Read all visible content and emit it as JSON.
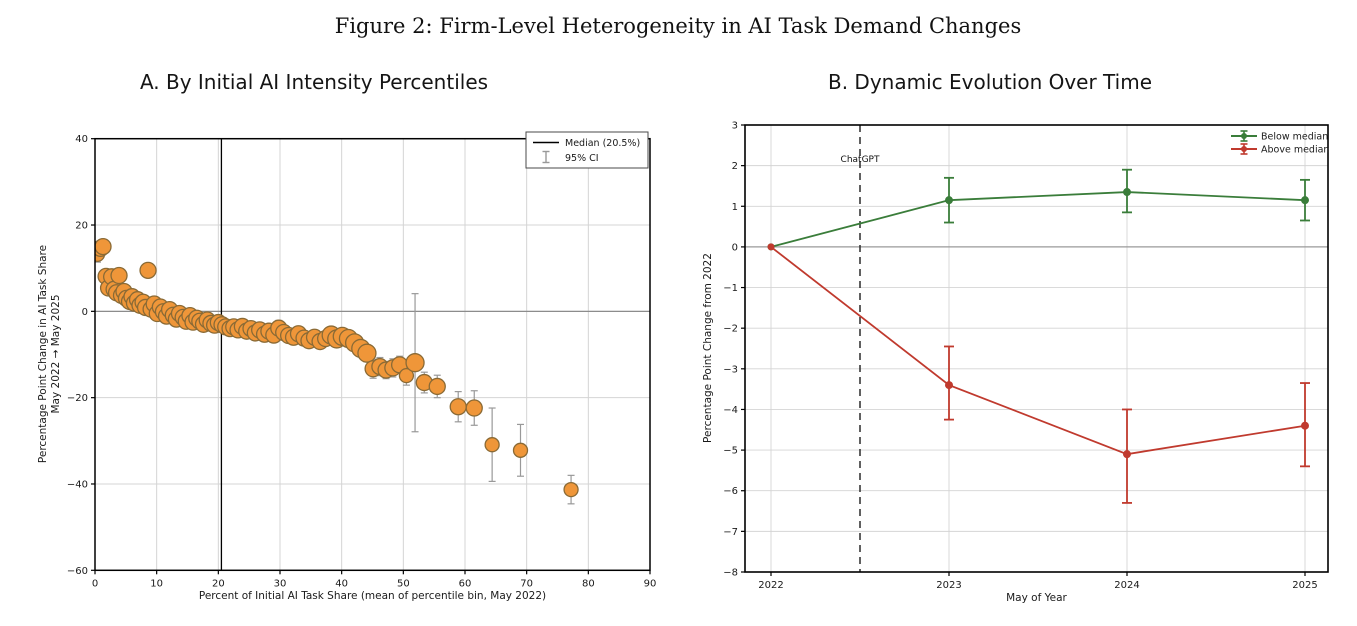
{
  "figure": {
    "title": "Figure 2: Firm-Level Heterogeneity in AI Task Demand Changes"
  },
  "chart_data": [
    {
      "type": "scatter",
      "panel": "A",
      "title": "A. By Initial AI Intensity Percentiles",
      "xlabel": "Percent of Initial AI Task Share (mean of percentile bin, May 2022)",
      "ylabel_line1": "Percentage Point Change in AI Task Share",
      "ylabel_line2": "May 2022 → May 2025",
      "xlim": [
        0,
        90
      ],
      "ylim": [
        -60,
        40
      ],
      "xticks": [
        0,
        10,
        20,
        30,
        40,
        50,
        60,
        70,
        80,
        90
      ],
      "yticks": [
        40,
        20,
        0,
        -20,
        -40,
        -60
      ],
      "grid": true,
      "median_line_x": 20.5,
      "zero_line_y": 0,
      "legend_position": "upper right",
      "legend": [
        {
          "label": "Median (20.5%)",
          "type": "line",
          "color": "#000000"
        },
        {
          "label": "95% CI",
          "type": "errorbar",
          "color": "#999999"
        }
      ],
      "marker_fill": "#ef9639",
      "marker_edge": "#8a6a35",
      "errorbar_color": "#999999",
      "points_format": "[x, y, ci_halfwidth, radius_px]",
      "points": [
        [
          0.4,
          13.2,
          1.8,
          7
        ],
        [
          0.9,
          14.6,
          1.5,
          8
        ],
        [
          1.3,
          15.0,
          1.2,
          8
        ],
        [
          1.8,
          8.1,
          1.5,
          8
        ],
        [
          2.2,
          5.4,
          1.4,
          8
        ],
        [
          2.7,
          8.0,
          1.3,
          8
        ],
        [
          3.1,
          5.1,
          1.2,
          8
        ],
        [
          3.5,
          4.3,
          1.5,
          8
        ],
        [
          3.9,
          8.3,
          1.4,
          8
        ],
        [
          4.3,
          3.7,
          1.3,
          8
        ],
        [
          4.7,
          4.6,
          1.5,
          8
        ],
        [
          5.1,
          3.0,
          1.3,
          8
        ],
        [
          5.6,
          2.3,
          1.4,
          8
        ],
        [
          6.0,
          3.4,
          1.6,
          8
        ],
        [
          6.4,
          1.9,
          1.3,
          8
        ],
        [
          6.9,
          2.7,
          1.5,
          8
        ],
        [
          7.3,
          1.4,
          1.4,
          8
        ],
        [
          7.8,
          2.1,
          1.3,
          8
        ],
        [
          8.2,
          0.9,
          1.5,
          8
        ],
        [
          8.6,
          9.5,
          1.6,
          8
        ],
        [
          9.1,
          0.5,
          1.4,
          8
        ],
        [
          9.6,
          1.7,
          1.5,
          8
        ],
        [
          10.1,
          -0.5,
          1.6,
          8
        ],
        [
          10.6,
          1.0,
          1.4,
          8
        ],
        [
          11.1,
          -0.1,
          1.3,
          8
        ],
        [
          11.6,
          -1.1,
          1.5,
          8
        ],
        [
          12.1,
          0.4,
          1.4,
          8
        ],
        [
          12.7,
          -0.9,
          1.3,
          8
        ],
        [
          13.2,
          -1.8,
          1.7,
          8
        ],
        [
          13.7,
          -0.5,
          1.4,
          8
        ],
        [
          14.3,
          -1.4,
          1.5,
          8
        ],
        [
          14.8,
          -2.3,
          1.6,
          8
        ],
        [
          15.4,
          -1.0,
          1.4,
          8
        ],
        [
          15.9,
          -2.5,
          1.5,
          8
        ],
        [
          16.5,
          -1.6,
          1.4,
          8
        ],
        [
          17.0,
          -2.3,
          1.5,
          8
        ],
        [
          17.6,
          -3.0,
          1.6,
          8
        ],
        [
          18.2,
          -2.0,
          1.4,
          8
        ],
        [
          18.8,
          -2.8,
          1.5,
          8
        ],
        [
          19.4,
          -3.2,
          1.4,
          8
        ],
        [
          20.0,
          -2.6,
          1.5,
          8
        ],
        [
          20.6,
          -3.1,
          1.4,
          8
        ],
        [
          21.2,
          -3.6,
          1.5,
          8
        ],
        [
          21.9,
          -4.0,
          1.6,
          8
        ],
        [
          22.5,
          -3.6,
          1.4,
          8
        ],
        [
          23.2,
          -4.3,
          1.5,
          8
        ],
        [
          23.9,
          -3.5,
          1.6,
          8
        ],
        [
          24.6,
          -4.6,
          1.5,
          8
        ],
        [
          25.3,
          -4.0,
          1.4,
          8
        ],
        [
          26.0,
          -5.0,
          1.6,
          8
        ],
        [
          26.7,
          -4.3,
          1.5,
          8
        ],
        [
          27.5,
          -5.3,
          1.7,
          8
        ],
        [
          28.2,
          -4.6,
          1.5,
          8
        ],
        [
          29.0,
          -5.5,
          1.6,
          8
        ],
        [
          29.8,
          -3.9,
          1.8,
          8
        ],
        [
          30.6,
          -4.9,
          1.5,
          8
        ],
        [
          31.4,
          -5.6,
          1.6,
          8
        ],
        [
          32.2,
          -6.0,
          1.5,
          8
        ],
        [
          33.0,
          -5.2,
          1.6,
          8
        ],
        [
          33.9,
          -6.2,
          1.7,
          8
        ],
        [
          34.7,
          -6.8,
          1.6,
          8
        ],
        [
          35.6,
          -6.0,
          1.5,
          8
        ],
        [
          36.5,
          -7.0,
          1.7,
          8
        ],
        [
          37.4,
          -6.3,
          1.6,
          8
        ],
        [
          38.3,
          -5.5,
          1.7,
          9
        ],
        [
          39.2,
          -6.4,
          1.6,
          9
        ],
        [
          40.1,
          -5.8,
          1.5,
          9
        ],
        [
          41.1,
          -6.3,
          1.6,
          9
        ],
        [
          42.1,
          -7.3,
          1.8,
          9
        ],
        [
          43.1,
          -8.6,
          1.9,
          9
        ],
        [
          44.1,
          -9.7,
          2.0,
          9
        ],
        [
          45.1,
          -13.3,
          2.2,
          8
        ],
        [
          46.2,
          -12.8,
          2.1,
          8
        ],
        [
          47.2,
          -13.6,
          2.0,
          8
        ],
        [
          48.3,
          -13.1,
          2.1,
          8
        ],
        [
          49.4,
          -12.4,
          2.0,
          8
        ],
        [
          50.5,
          -14.9,
          2.2,
          7
        ],
        [
          51.9,
          -11.9,
          16.0,
          9
        ],
        [
          53.4,
          -16.5,
          2.4,
          8
        ],
        [
          55.5,
          -17.4,
          2.6,
          8
        ],
        [
          58.9,
          -22.1,
          3.5,
          8
        ],
        [
          61.5,
          -22.4,
          4.0,
          8
        ],
        [
          64.4,
          -30.9,
          8.5,
          7
        ],
        [
          69.0,
          -32.2,
          6.0,
          7
        ],
        [
          77.2,
          -41.3,
          3.3,
          7
        ]
      ]
    },
    {
      "type": "line",
      "panel": "B",
      "title": "B. Dynamic Evolution Over Time",
      "xlabel": "May of Year",
      "ylabel": "Percentage Point Change from 2022",
      "xlim": [
        2022,
        2025
      ],
      "ylim": [
        -8,
        3
      ],
      "xticks": [
        2022,
        2023,
        2024,
        2025
      ],
      "yticks": [
        3,
        2,
        1,
        0,
        -1,
        -2,
        -3,
        -4,
        -5,
        -6,
        -7,
        -8
      ],
      "grid": true,
      "zero_line_y": 0,
      "annotation": {
        "label": "ChatGPT",
        "x": 2022.5,
        "line_style": "dashed"
      },
      "legend_position": "upper right",
      "series": [
        {
          "name": "Below median",
          "color": "#3a7d3a",
          "x": [
            2022,
            2023,
            2024,
            2025
          ],
          "y": [
            0,
            1.15,
            1.35,
            1.15
          ],
          "ci_low": [
            0,
            0.6,
            0.85,
            0.65
          ],
          "ci_high": [
            0,
            1.7,
            1.9,
            1.65
          ]
        },
        {
          "name": "Above median",
          "color": "#c03a2e",
          "x": [
            2022,
            2023,
            2024,
            2025
          ],
          "y": [
            0,
            -3.4,
            -5.1,
            -4.4
          ],
          "ci_low": [
            0,
            -4.25,
            -6.3,
            -5.4
          ],
          "ci_high": [
            0,
            -2.45,
            -4.0,
            -3.35
          ]
        }
      ]
    }
  ]
}
